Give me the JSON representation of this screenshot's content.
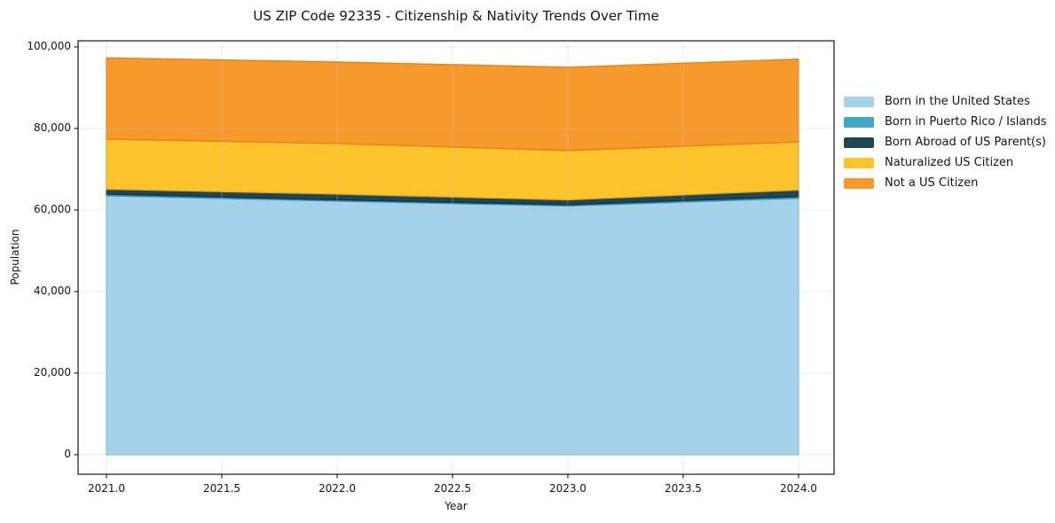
{
  "figure": {
    "background": "#ffffff"
  },
  "chart_data": {
    "type": "area",
    "stacked": true,
    "title": "US ZIP Code 92335 - Citizenship & Nativity Trends Over Time",
    "xlabel": "Year",
    "ylabel": "Population",
    "x": [
      2021,
      2022,
      2023,
      2024
    ],
    "series": [
      {
        "name": "Born in the United States",
        "color": "#a2d3ea",
        "edge": "#85c0dc",
        "values": [
          63500,
          62200,
          61000,
          62900
        ]
      },
      {
        "name": "Born in Puerto Rico / Islands",
        "color": "#41a7c5",
        "edge": "#3691ae",
        "values": [
          400,
          300,
          300,
          400
        ]
      },
      {
        "name": "Born Abroad of US Parent(s)",
        "color": "#1f4557",
        "edge": "#16323f",
        "values": [
          1200,
          1400,
          1200,
          1600
        ]
      },
      {
        "name": "Naturalized US Citizen",
        "color": "#fcc32a",
        "edge": "#e8a916",
        "values": [
          12300,
          12400,
          12100,
          11800
        ]
      },
      {
        "name": "Not a US Citizen",
        "color": "#f89a2b",
        "edge": "#e5831a",
        "values": [
          19900,
          20000,
          20400,
          20300
        ]
      }
    ],
    "totals": [
      97300,
      96300,
      95000,
      97000
    ],
    "xlim": [
      2020.877,
      2024.154
    ],
    "ylim": [
      -4800,
      101500
    ],
    "xticks": {
      "values": [
        2021.0,
        2021.5,
        2022.0,
        2022.5,
        2023.0,
        2023.5,
        2024.0
      ],
      "labels": [
        "2021.0",
        "2021.5",
        "2022.0",
        "2022.5",
        "2023.0",
        "2023.5",
        "2024.0"
      ]
    },
    "yticks": {
      "values": [
        0,
        20000,
        40000,
        60000,
        80000,
        100000
      ],
      "labels": [
        "0",
        "20,000",
        "40,000",
        "60,000",
        "80,000",
        "100,000"
      ]
    },
    "grid": true,
    "grid_color": "#c2c2c2",
    "frame_color": "#262626",
    "legend_position": "right"
  }
}
